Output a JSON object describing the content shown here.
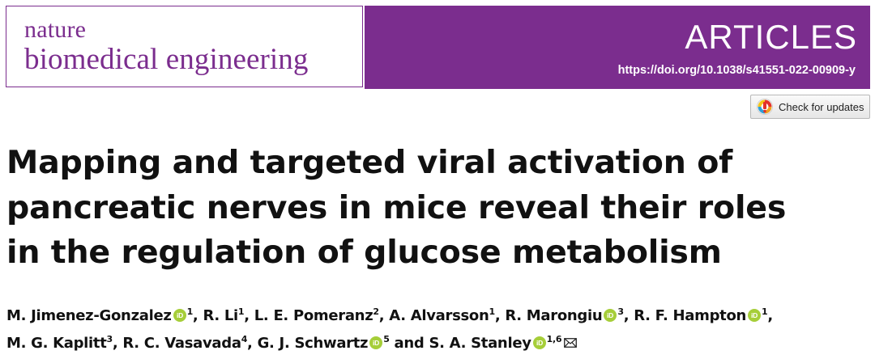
{
  "header": {
    "journal_line1": "nature",
    "journal_line2": "biomedical engineering",
    "section": "ARTICLES",
    "doi": "https://doi.org/10.1038/s41551-022-00909-y",
    "brand_color": "#7b2d8e"
  },
  "check_updates": {
    "label": "Check for updates",
    "icon": "crossmark-icon"
  },
  "article": {
    "title_lines": [
      "Mapping and targeted viral activation of",
      "pancreatic nerves in mice reveal their roles",
      "in the regulation of glucose metabolism"
    ],
    "author_lines": [
      [
        {
          "name": "M. Jimenez-Gonzalez",
          "orcid": true,
          "aff": "1",
          "sep": ", "
        },
        {
          "name": "R. Li",
          "orcid": false,
          "aff": "1",
          "sep": ", "
        },
        {
          "name": "L. E. Pomeranz",
          "orcid": false,
          "aff": "2",
          "sep": ", "
        },
        {
          "name": "A. Alvarsson",
          "orcid": false,
          "aff": "1",
          "sep": ", "
        },
        {
          "name": "R. Marongiu",
          "orcid": true,
          "aff": "3",
          "sep": ", "
        },
        {
          "name": "R. F. Hampton",
          "orcid": true,
          "aff": "1",
          "sep": ","
        }
      ],
      [
        {
          "name": "M. G. Kaplitt",
          "orcid": false,
          "aff": "3",
          "sep": ", "
        },
        {
          "name": "R. C. Vasavada",
          "orcid": false,
          "aff": "4",
          "sep": ", "
        },
        {
          "name": "G. J. Schwartz",
          "orcid": true,
          "aff": "5",
          "sep": " and "
        },
        {
          "name": "S. A. Stanley",
          "orcid": true,
          "aff": "1,6",
          "sep": "",
          "corresponding": true
        }
      ]
    ],
    "orcid_color": "#a6ce39",
    "orcid_icon": "orcid-icon",
    "mail_icon": "envelope-icon"
  }
}
